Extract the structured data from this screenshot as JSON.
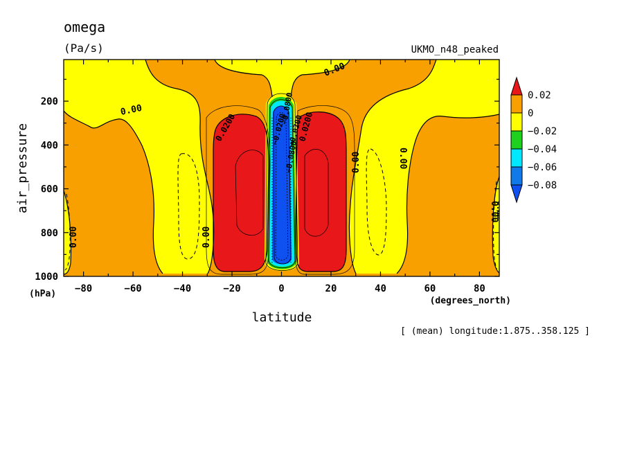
{
  "chart_data": {
    "type": "contour-filled",
    "variable": "omega",
    "units": "(Pa/s)",
    "model": "UKMO_n48_peaked",
    "xlabel": "latitude",
    "xunits": "(degrees_north)",
    "ylabel": "air_pressure",
    "yunits": "(hPa)",
    "annotation": "[ (mean) longitude:1.875..358.125 ]",
    "xlim": [
      -88,
      88
    ],
    "ylim": [
      1000,
      10
    ],
    "x_ticks": [
      -80,
      -60,
      -40,
      -20,
      0,
      20,
      40,
      60,
      80
    ],
    "y_ticks": [
      200,
      400,
      600,
      800,
      1000
    ],
    "colorbar": {
      "levels": [
        0.02,
        0,
        -0.02,
        -0.04,
        -0.06,
        -0.08
      ],
      "labels": [
        "0.02",
        "0",
        "−0.02",
        "−0.04",
        "−0.06",
        "−0.08"
      ],
      "colors": {
        "above_0.02": "#e8171a",
        "0_to_0.02": "#f8a000",
        "neg0.02_to_0": "#ffff00",
        "neg0.04_to_neg0.02": "#1ed11e",
        "neg0.06_to_neg0.04": "#00e8ff",
        "neg0.08_to_neg0.06": "#0f7ae8",
        "below_neg0.08": "#0f50f0"
      }
    },
    "contour_labels": [
      "0.00",
      "0.00",
      "0.00",
      "0.00",
      "0.00",
      "0.00",
      "0.00",
      "0.00",
      "0.0200",
      "0.0200",
      "−0.0200",
      "−0.0200",
      "−0.0800",
      "−0.0800"
    ],
    "regions": [
      {
        "field": "0_to_0.02",
        "lat": [
          -88,
          88
        ],
        "p": [
          10,
          1000
        ]
      },
      {
        "field": "neg0.02_to_0",
        "lat": [
          -54,
          -25
        ],
        "p": [
          100,
          1000
        ]
      },
      {
        "field": "neg0.02_to_0",
        "lat": [
          25,
          54
        ],
        "p": [
          100,
          1000
        ]
      },
      {
        "field": "above_0.02",
        "lat": [
          -27,
          -7
        ],
        "p": [
          250,
          970
        ]
      },
      {
        "field": "above_0.02",
        "lat": [
          7,
          27
        ],
        "p": [
          250,
          970
        ]
      },
      {
        "field": "below_neg0.08",
        "lat": [
          -3,
          3
        ],
        "p": [
          200,
          980
        ]
      }
    ]
  }
}
